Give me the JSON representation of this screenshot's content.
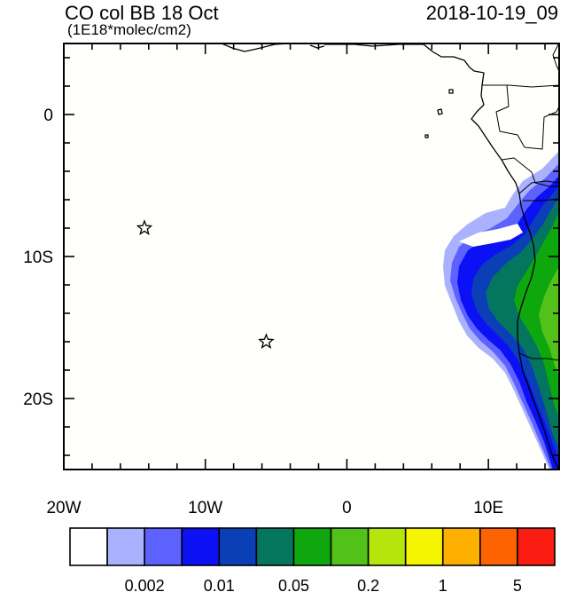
{
  "title": "CO col BB 18 Oct",
  "subtitle": "(1E18*molec/cm2)",
  "timestamp": "2018-10-19_09",
  "map": {
    "lon_range": [
      -20,
      15
    ],
    "lat_range": [
      -25,
      5
    ],
    "x_ticks": [
      {
        "value": -20,
        "label": "20W"
      },
      {
        "value": -10,
        "label": "10W"
      },
      {
        "value": 0,
        "label": "0"
      },
      {
        "value": 10,
        "label": "10E"
      }
    ],
    "y_ticks": [
      {
        "value": 0,
        "label": "0"
      },
      {
        "value": -10,
        "label": "10S"
      },
      {
        "value": -20,
        "label": "20S"
      }
    ],
    "markers": [
      {
        "symbol": "star",
        "lon": -14.3,
        "lat": -8.0
      },
      {
        "symbol": "star",
        "lon": -5.7,
        "lat": -16.0
      }
    ]
  },
  "colorbar": {
    "colors": [
      "#ffffff",
      "#aab2ff",
      "#5d62ff",
      "#0b10f5",
      "#0a3fb8",
      "#05765e",
      "#0ea80e",
      "#52c11a",
      "#b4e50c",
      "#f5f502",
      "#fdb000",
      "#fd6300",
      "#fb1d12"
    ],
    "labels": [
      {
        "after_box": 2,
        "text": "0.002"
      },
      {
        "after_box": 4,
        "text": "0.01"
      },
      {
        "after_box": 6,
        "text": "0.05"
      },
      {
        "after_box": 8,
        "text": "0.2"
      },
      {
        "after_box": 10,
        "text": "1"
      },
      {
        "after_box": 12,
        "text": "5"
      }
    ]
  }
}
